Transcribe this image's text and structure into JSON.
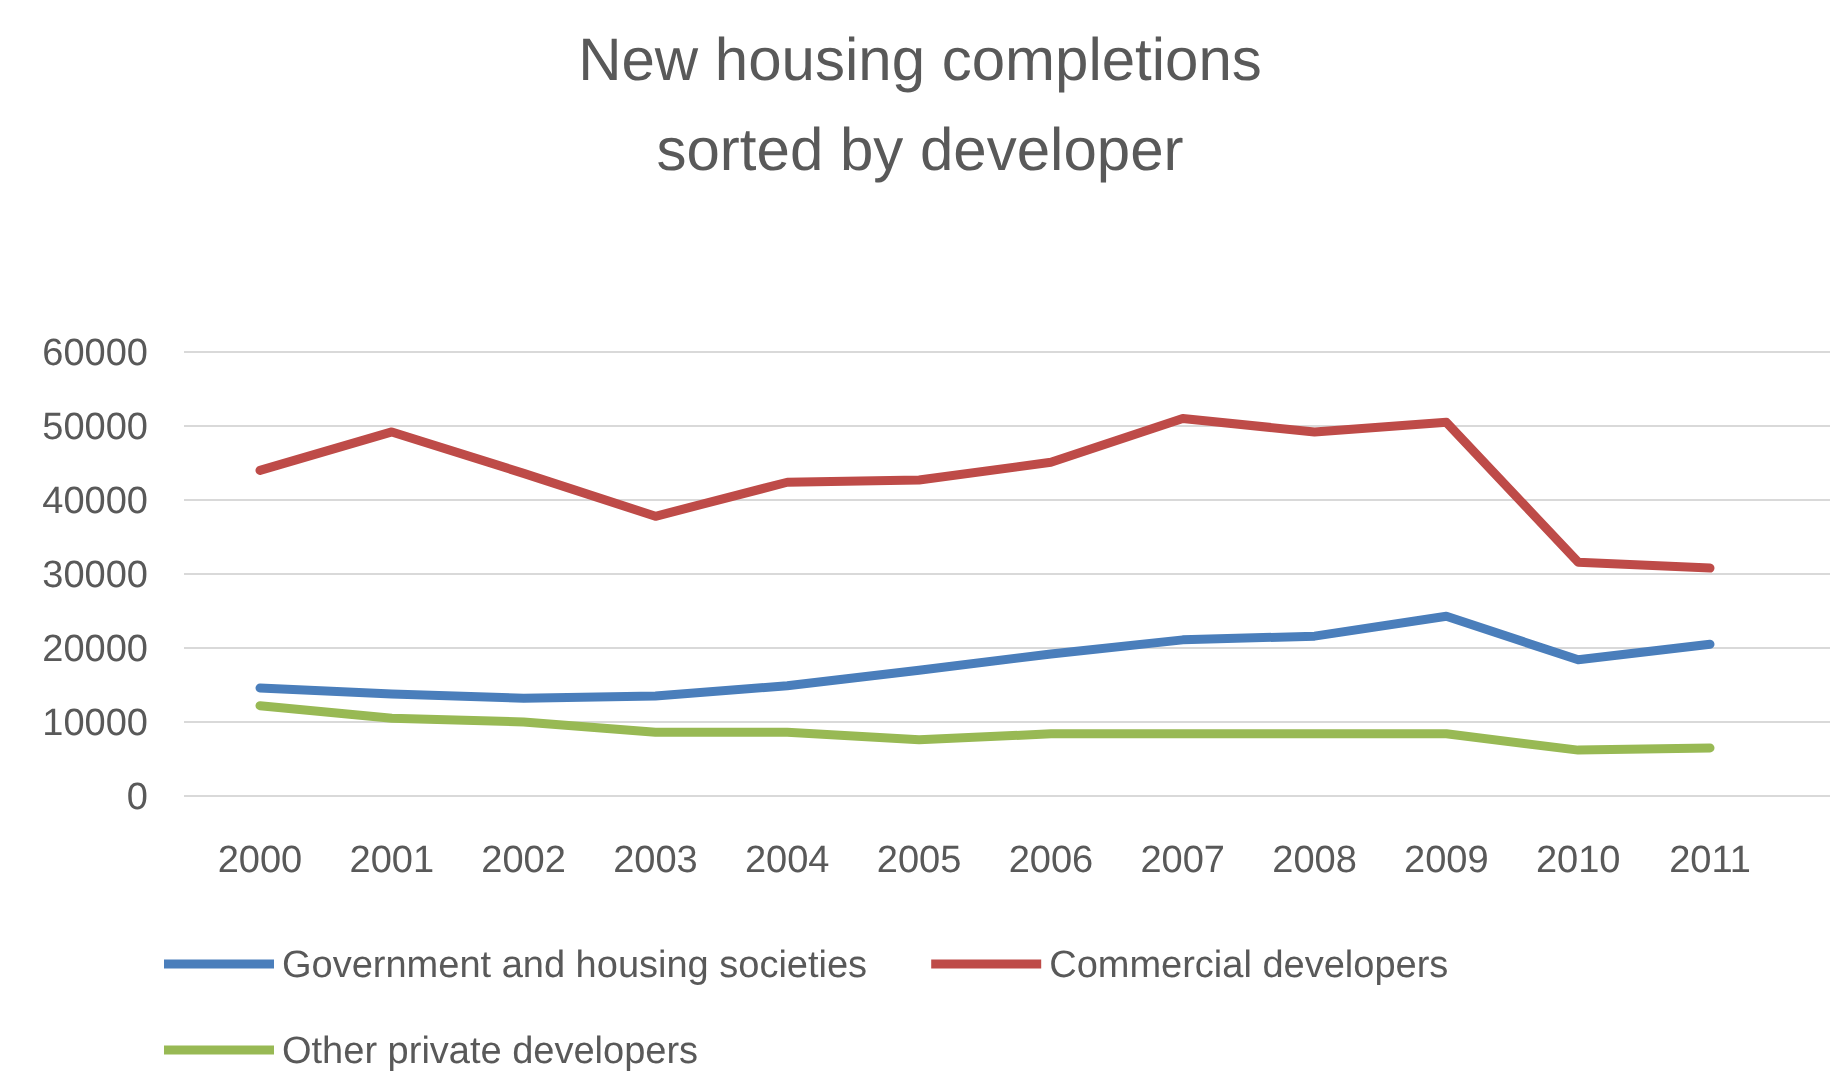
{
  "chart_data": {
    "type": "line",
    "title": "New housing completions\nsorted by developer",
    "categories": [
      "2000",
      "2001",
      "2002",
      "2003",
      "2004",
      "2005",
      "2006",
      "2007",
      "2008",
      "2009",
      "2010",
      "2011"
    ],
    "series": [
      {
        "name": "Government and housing societies",
        "color": "#4a7ebb",
        "values": [
          14600,
          13800,
          13200,
          13500,
          14900,
          17000,
          19200,
          21100,
          21600,
          24300,
          18400,
          20500
        ]
      },
      {
        "name": "Commercial developers",
        "color": "#be4b48",
        "values": [
          44000,
          49200,
          43600,
          37800,
          42400,
          42700,
          45100,
          51000,
          49200,
          50500,
          31600,
          30800
        ]
      },
      {
        "name": "Other private developers",
        "color": "#98b954",
        "values": [
          12200,
          10500,
          10000,
          8600,
          8600,
          7600,
          8400,
          8400,
          8400,
          8400,
          6200,
          6500
        ]
      }
    ],
    "ylim": [
      0,
      60000
    ],
    "yticks": [
      0,
      10000,
      20000,
      30000,
      40000,
      50000,
      60000
    ],
    "grid": "y",
    "legend": "bottom",
    "marker": "none",
    "line_style": "solid"
  }
}
